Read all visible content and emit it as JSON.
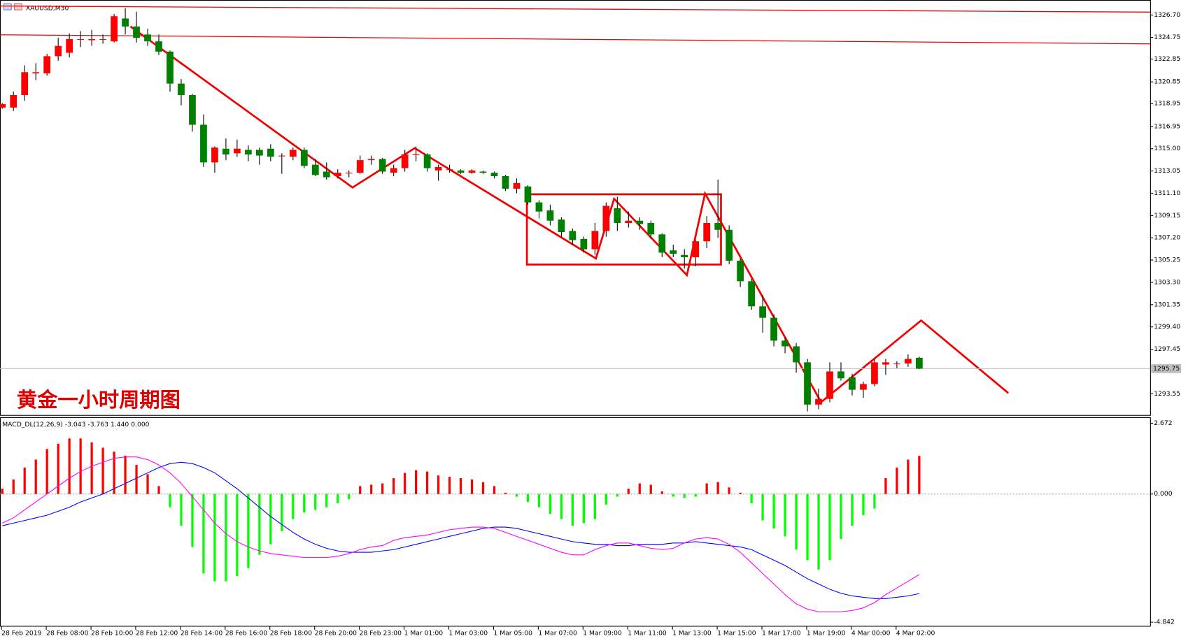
{
  "chart_data": [
    {
      "type": "candlestick",
      "title": "XAUUSD,M30",
      "annotation": "黄金一小时周期图",
      "categories": [
        "28 Feb 2019",
        null,
        null,
        null,
        "28 Feb 08:00",
        null,
        null,
        null,
        "28 Feb 10:00",
        null,
        null,
        null,
        "28 Feb 12:00",
        null,
        null,
        null,
        "28 Feb 14:00",
        null,
        null,
        null,
        "28 Feb 16:00",
        null,
        null,
        null,
        "28 Feb 18:00",
        null,
        null,
        null,
        "28 Feb 20:00",
        null,
        null,
        null,
        "28 Feb 23:00",
        null,
        null,
        null,
        "1 Mar 01:00",
        null,
        null,
        null,
        "1 Mar 03:00",
        null,
        null,
        null,
        "1 Mar 05:00",
        null,
        null,
        null,
        "1 Mar 07:00",
        null,
        null,
        null,
        "1 Mar 09:00",
        null,
        null,
        null,
        "1 Mar 11:00",
        null,
        null,
        null,
        "1 Mar 13:00",
        null,
        null,
        null,
        "1 Mar 15:00",
        null,
        null,
        null,
        "1 Mar 17:00",
        null,
        null,
        null,
        "1 Mar 19:00",
        null,
        null,
        null,
        "4 Mar 00:00",
        null,
        null,
        null,
        "4 Mar 02:00",
        null,
        null
      ],
      "open": [
        1318.6,
        1318.6,
        1319.7,
        1321.6,
        1321.6,
        1323.1,
        1323.4,
        1324.6,
        1324.5,
        1324.6,
        1324.4,
        1326.4,
        1325.7,
        1325.0,
        1324.4,
        1323.5,
        1320.7,
        1319.7,
        1317.1,
        1313.8,
        1315.0,
        1314.6,
        1314.9,
        1314.9,
        1315.0,
        1314.4,
        1314.3,
        1314.9,
        1313.6,
        1313.0,
        1312.6,
        1312.9,
        1312.9,
        1314.0,
        1314.1,
        1312.9,
        1313.3,
        1314.5,
        1314.5,
        1313.1,
        1313.2,
        1313.1,
        1312.9,
        1313.0,
        1312.9,
        1312.6,
        1311.5,
        1311.7,
        1310.3,
        1309.6,
        1308.8,
        1307.8,
        1307.1,
        1306.2,
        1307.8,
        1309.8,
        1308.5,
        1308.7,
        1308.5,
        1307.5,
        1306.1,
        1305.7,
        1305.5,
        1306.9,
        1308.5,
        1307.9,
        1305.2,
        1303.4,
        1301.2,
        1300.2,
        1298.2,
        1297.7,
        1296.3,
        1292.6,
        1293.1,
        1295.5,
        1295.0,
        1293.9,
        1294.4,
        1296.1,
        1296.2,
        1296.2,
        1296.7
      ],
      "high": [
        1319.0,
        1320.0,
        1322.3,
        1322.5,
        1323.3,
        1324.7,
        1325.1,
        1325.3,
        1325.4,
        1325.0,
        1326.8,
        1327.3,
        1327.0,
        1325.5,
        1325.0,
        1323.6,
        1321.1,
        1319.8,
        1318.0,
        1315.2,
        1315.9,
        1315.8,
        1315.3,
        1315.1,
        1315.4,
        1314.6,
        1315.1,
        1315.1,
        1314.1,
        1313.8,
        1313.2,
        1313.1,
        1314.4,
        1314.4,
        1314.2,
        1313.6,
        1314.9,
        1315.2,
        1314.6,
        1313.6,
        1313.6,
        1313.2,
        1313.2,
        1313.1,
        1313.0,
        1312.7,
        1312.4,
        1311.8,
        1310.5,
        1310.1,
        1309.0,
        1308.0,
        1307.3,
        1308.5,
        1310.3,
        1310.8,
        1309.5,
        1309.0,
        1308.7,
        1307.6,
        1306.6,
        1306.2,
        1307.0,
        1309.1,
        1312.3,
        1308.3,
        1305.4,
        1303.6,
        1302.2,
        1300.5,
        1298.5,
        1298.0,
        1296.6,
        1294.0,
        1296.3,
        1296.3,
        1295.3,
        1294.6,
        1296.6,
        1296.6,
        1296.4,
        1297.0,
        1296.8
      ],
      "low": [
        1318.5,
        1318.3,
        1319.2,
        1321.0,
        1321.4,
        1322.7,
        1323.0,
        1323.9,
        1324.0,
        1324.2,
        1324.3,
        1325.0,
        1324.3,
        1324.0,
        1323.2,
        1320.0,
        1318.8,
        1316.5,
        1313.4,
        1312.9,
        1314.0,
        1314.3,
        1313.9,
        1313.6,
        1313.9,
        1312.8,
        1314.0,
        1313.3,
        1312.6,
        1312.3,
        1312.4,
        1312.5,
        1312.8,
        1313.6,
        1312.8,
        1312.6,
        1313.0,
        1313.9,
        1313.0,
        1312.2,
        1312.9,
        1312.8,
        1312.8,
        1312.8,
        1312.4,
        1311.3,
        1311.1,
        1310.1,
        1308.9,
        1308.3,
        1307.3,
        1306.6,
        1305.9,
        1305.7,
        1307.3,
        1307.8,
        1308.1,
        1307.9,
        1307.1,
        1305.5,
        1305.5,
        1304.5,
        1304.7,
        1306.3,
        1307.2,
        1304.9,
        1302.9,
        1300.9,
        1298.9,
        1297.7,
        1297.1,
        1295.4,
        1292.0,
        1292.2,
        1292.8,
        1294.7,
        1293.4,
        1293.2,
        1294.2,
        1295.2,
        1295.8,
        1295.9,
        1295.7
      ],
      "close": [
        1318.9,
        1319.7,
        1321.7,
        1321.7,
        1323.1,
        1324.0,
        1324.6,
        1324.6,
        1324.6,
        1324.6,
        1326.6,
        1325.7,
        1324.7,
        1324.4,
        1323.5,
        1320.7,
        1319.7,
        1317.1,
        1313.8,
        1315.1,
        1314.5,
        1315.0,
        1314.5,
        1314.4,
        1314.3,
        1314.4,
        1314.9,
        1313.5,
        1312.7,
        1312.5,
        1312.9,
        1312.9,
        1314.0,
        1314.1,
        1313.0,
        1313.3,
        1314.5,
        1314.5,
        1313.3,
        1313.4,
        1313.2,
        1312.9,
        1313.1,
        1312.9,
        1312.6,
        1311.5,
        1312.0,
        1310.3,
        1309.5,
        1308.7,
        1307.7,
        1307.0,
        1306.2,
        1307.8,
        1310.0,
        1308.5,
        1308.7,
        1308.4,
        1307.5,
        1305.9,
        1305.8,
        1305.5,
        1306.9,
        1308.5,
        1307.9,
        1305.2,
        1303.4,
        1301.2,
        1300.2,
        1298.2,
        1297.7,
        1296.3,
        1292.6,
        1293.1,
        1295.5,
        1294.9,
        1293.9,
        1294.4,
        1296.3,
        1296.3,
        1296.2,
        1296.6,
        1295.75
      ],
      "up_color": "#ff0000",
      "down_color": "#008000",
      "last_price": 1295.75,
      "ylim": [
        1291.69,
        1328.02
      ],
      "yticks": [
        {
          "value": 1326.7,
          "label": "1326.70"
        },
        1324.75,
        1322.85,
        1320.85,
        1318.95,
        1316.95,
        {
          "value": 1315,
          "label": "1315.00"
        },
        1313.05,
        {
          "value": 1311.1,
          "label": "1311.10"
        },
        1309.15,
        {
          "value": 1307.2,
          "label": "1307.20"
        },
        1305.25,
        {
          "value": 1303.3,
          "label": "1303.30"
        },
        1301.35,
        {
          "value": 1299.4,
          "label": "1299.40"
        },
        1297.45,
        1293.55
      ]
    },
    {
      "type": "macd",
      "title": "MACD_DL(12,26,9) -3.043 -3.763 1.440 0.000",
      "histogram": {
        "up_color": "#ff0000",
        "down_color": "#00ff00",
        "values": [
          0.2,
          0.55,
          1.0,
          1.3,
          1.7,
          1.9,
          2.1,
          2.1,
          1.95,
          1.75,
          1.6,
          1.45,
          1.1,
          0.75,
          0.3,
          -0.5,
          -1.2,
          -2.0,
          -3.0,
          -3.3,
          -3.3,
          -3.1,
          -2.8,
          -2.3,
          -1.9,
          -1.4,
          -0.95,
          -0.7,
          -0.6,
          -0.5,
          -0.35,
          -0.2,
          0.3,
          0.35,
          0.4,
          0.6,
          0.8,
          0.9,
          0.85,
          0.7,
          0.65,
          0.6,
          0.55,
          0.45,
          0.3,
          0.05,
          -0.1,
          -0.3,
          -0.5,
          -0.75,
          -0.95,
          -1.2,
          -1.1,
          -0.95,
          -0.4,
          -0.1,
          0.2,
          0.4,
          0.35,
          0.1,
          -0.1,
          -0.15,
          -0.1,
          0.4,
          0.45,
          0.25,
          0.05,
          -0.35,
          -1.0,
          -1.3,
          -1.6,
          -2.1,
          -2.5,
          -2.85,
          -2.5,
          -1.7,
          -1.2,
          -0.8,
          -0.55,
          0.6,
          1.0,
          1.3,
          1.44
        ]
      },
      "lines": [
        {
          "color": "#0000ff",
          "values": [
            -1.2,
            -1.1,
            -1.0,
            -0.9,
            -0.8,
            -0.65,
            -0.5,
            -0.3,
            -0.15,
            0.0,
            0.2,
            0.4,
            0.6,
            0.8,
            1.0,
            1.15,
            1.2,
            1.15,
            1.0,
            0.8,
            0.5,
            0.2,
            -0.15,
            -0.5,
            -0.85,
            -1.15,
            -1.45,
            -1.7,
            -1.9,
            -2.05,
            -2.15,
            -2.2,
            -2.2,
            -2.2,
            -2.15,
            -2.1,
            -2.0,
            -1.9,
            -1.8,
            -1.7,
            -1.6,
            -1.5,
            -1.4,
            -1.3,
            -1.25,
            -1.25,
            -1.3,
            -1.4,
            -1.5,
            -1.6,
            -1.7,
            -1.8,
            -1.85,
            -1.9,
            -1.9,
            -1.95,
            -1.95,
            -1.9,
            -1.9,
            -1.9,
            -1.85,
            -1.85,
            -1.8,
            -1.85,
            -1.9,
            -1.95,
            -2.0,
            -2.1,
            -2.3,
            -2.5,
            -2.7,
            -2.95,
            -3.2,
            -3.4,
            -3.6,
            -3.75,
            -3.85,
            -3.9,
            -3.95,
            -3.95,
            -3.9,
            -3.85,
            -3.76
          ]
        },
        {
          "color": "#ff00ff",
          "values": [
            -1.1,
            -0.9,
            -0.6,
            -0.3,
            0.0,
            0.3,
            0.6,
            0.85,
            1.05,
            1.2,
            1.35,
            1.4,
            1.4,
            1.3,
            1.1,
            0.8,
            0.4,
            -0.1,
            -0.6,
            -1.1,
            -1.5,
            -1.8,
            -2.0,
            -2.15,
            -2.25,
            -2.3,
            -2.35,
            -2.4,
            -2.4,
            -2.4,
            -2.35,
            -2.25,
            -2.1,
            -2.0,
            -1.95,
            -1.75,
            -1.65,
            -1.6,
            -1.55,
            -1.45,
            -1.35,
            -1.3,
            -1.25,
            -1.25,
            -1.3,
            -1.45,
            -1.6,
            -1.75,
            -1.9,
            -2.05,
            -2.2,
            -2.3,
            -2.3,
            -2.1,
            -1.95,
            -1.85,
            -1.85,
            -1.95,
            -2.05,
            -2.1,
            -2.05,
            -1.85,
            -1.7,
            -1.65,
            -1.7,
            -1.9,
            -2.2,
            -2.6,
            -3.0,
            -3.4,
            -3.8,
            -4.15,
            -4.35,
            -4.45,
            -4.45,
            -4.45,
            -4.4,
            -4.3,
            -4.1,
            -3.8,
            -3.55,
            -3.3,
            -3.04
          ]
        }
      ],
      "ylim": [
        -5.01,
        2.9
      ],
      "yticks": [
        2.672,
        {
          "value": 0,
          "label": "0.000"
        },
        -4.842
      ]
    }
  ]
}
